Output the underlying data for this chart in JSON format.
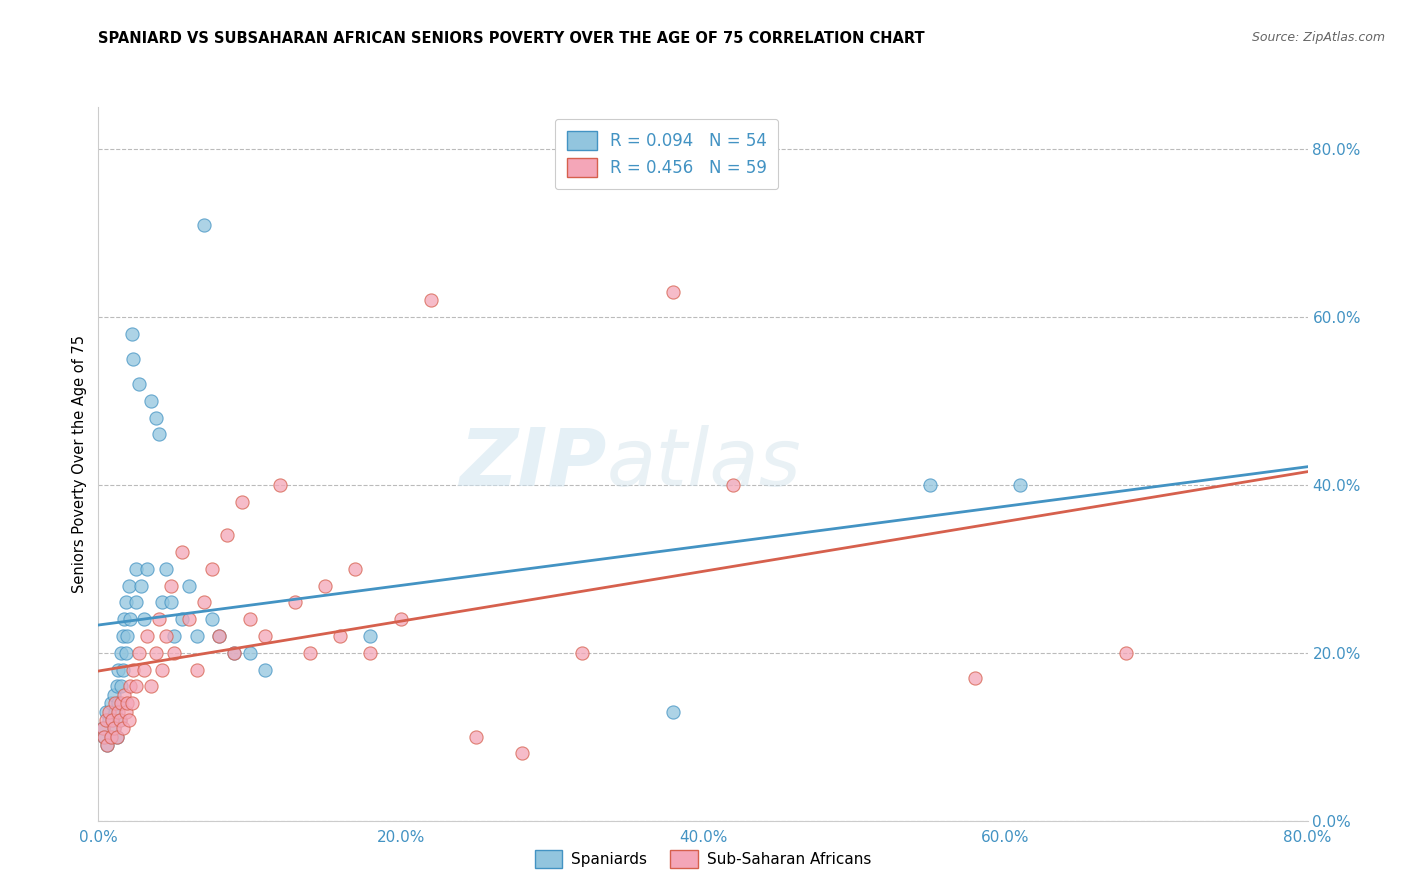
{
  "title": "SPANIARD VS SUBSAHARAN AFRICAN SENIORS POVERTY OVER THE AGE OF 75 CORRELATION CHART",
  "source": "Source: ZipAtlas.com",
  "ylabel": "Seniors Poverty Over the Age of 75",
  "legend_label1": "Spaniards",
  "legend_label2": "Sub-Saharan Africans",
  "legend_r1": "R = 0.094",
  "legend_n1": "N = 54",
  "legend_r2": "R = 0.456",
  "legend_n2": "N = 59",
  "xmin": 0.0,
  "xmax": 0.8,
  "ymin": 0.0,
  "ymax": 0.85,
  "xticks": [
    0.0,
    0.2,
    0.4,
    0.6,
    0.8
  ],
  "yticks": [
    0.0,
    0.2,
    0.4,
    0.6,
    0.8
  ],
  "color_blue": "#92c5de",
  "color_pink": "#f4a6b8",
  "line_color_blue": "#4393c3",
  "line_color_pink": "#d6604d",
  "watermark_zip": "ZIP",
  "watermark_atlas": "atlas",
  "spaniards_x": [
    0.003,
    0.004,
    0.005,
    0.006,
    0.007,
    0.008,
    0.008,
    0.009,
    0.01,
    0.01,
    0.011,
    0.012,
    0.012,
    0.013,
    0.013,
    0.014,
    0.015,
    0.015,
    0.016,
    0.016,
    0.017,
    0.018,
    0.018,
    0.019,
    0.02,
    0.021,
    0.022,
    0.023,
    0.025,
    0.025,
    0.027,
    0.028,
    0.03,
    0.032,
    0.035,
    0.038,
    0.04,
    0.042,
    0.045,
    0.048,
    0.05,
    0.055,
    0.06,
    0.065,
    0.07,
    0.075,
    0.08,
    0.09,
    0.1,
    0.11,
    0.18,
    0.38,
    0.55,
    0.61
  ],
  "spaniards_y": [
    0.11,
    0.1,
    0.13,
    0.09,
    0.12,
    0.1,
    0.14,
    0.12,
    0.11,
    0.15,
    0.13,
    0.1,
    0.16,
    0.14,
    0.18,
    0.12,
    0.2,
    0.16,
    0.22,
    0.18,
    0.24,
    0.2,
    0.26,
    0.22,
    0.28,
    0.24,
    0.58,
    0.55,
    0.3,
    0.26,
    0.52,
    0.28,
    0.24,
    0.3,
    0.5,
    0.48,
    0.46,
    0.26,
    0.3,
    0.26,
    0.22,
    0.24,
    0.28,
    0.22,
    0.71,
    0.24,
    0.22,
    0.2,
    0.2,
    0.18,
    0.22,
    0.13,
    0.4,
    0.4
  ],
  "subsaharan_x": [
    0.003,
    0.004,
    0.005,
    0.006,
    0.007,
    0.008,
    0.009,
    0.01,
    0.011,
    0.012,
    0.013,
    0.014,
    0.015,
    0.016,
    0.017,
    0.018,
    0.019,
    0.02,
    0.021,
    0.022,
    0.023,
    0.025,
    0.027,
    0.03,
    0.032,
    0.035,
    0.038,
    0.04,
    0.042,
    0.045,
    0.048,
    0.05,
    0.055,
    0.06,
    0.065,
    0.07,
    0.075,
    0.08,
    0.085,
    0.09,
    0.095,
    0.1,
    0.11,
    0.12,
    0.13,
    0.14,
    0.15,
    0.16,
    0.17,
    0.18,
    0.2,
    0.22,
    0.25,
    0.28,
    0.32,
    0.38,
    0.42,
    0.58,
    0.68
  ],
  "subsaharan_y": [
    0.11,
    0.1,
    0.12,
    0.09,
    0.13,
    0.1,
    0.12,
    0.11,
    0.14,
    0.1,
    0.13,
    0.12,
    0.14,
    0.11,
    0.15,
    0.13,
    0.14,
    0.12,
    0.16,
    0.14,
    0.18,
    0.16,
    0.2,
    0.18,
    0.22,
    0.16,
    0.2,
    0.24,
    0.18,
    0.22,
    0.28,
    0.2,
    0.32,
    0.24,
    0.18,
    0.26,
    0.3,
    0.22,
    0.34,
    0.2,
    0.38,
    0.24,
    0.22,
    0.4,
    0.26,
    0.2,
    0.28,
    0.22,
    0.3,
    0.2,
    0.24,
    0.62,
    0.1,
    0.08,
    0.2,
    0.63,
    0.4,
    0.17,
    0.2
  ]
}
